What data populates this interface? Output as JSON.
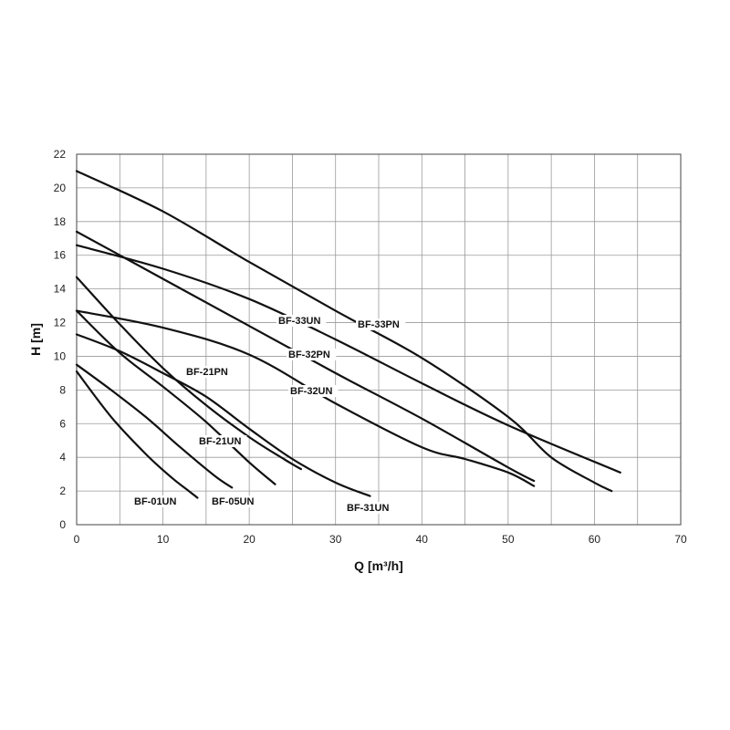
{
  "chart_data": {
    "type": "line",
    "title": "",
    "xlabel": "Q [m³/h]",
    "ylabel": "H [m]",
    "xlim": [
      0,
      70
    ],
    "ylim": [
      0,
      22
    ],
    "xticks": [
      0,
      10,
      20,
      30,
      40,
      50,
      60,
      70
    ],
    "yticks": [
      0,
      2,
      4,
      6,
      8,
      10,
      12,
      14,
      16,
      18,
      20,
      22
    ],
    "grid": true,
    "minor_x_grid_step": 5,
    "series": [
      {
        "name": "BF-01UN",
        "x": [
          0,
          4,
          8,
          11,
          13,
          14
        ],
        "y": [
          9.1,
          6.4,
          4.2,
          2.8,
          2.0,
          1.6
        ]
      },
      {
        "name": "BF-05UN",
        "x": [
          0,
          4,
          8,
          12,
          16,
          18
        ],
        "y": [
          9.5,
          8.0,
          6.4,
          4.6,
          2.9,
          2.2
        ]
      },
      {
        "name": "BF-21UN",
        "x": [
          0,
          5,
          10,
          15,
          20,
          23
        ],
        "y": [
          12.7,
          10.2,
          8.2,
          6.1,
          3.7,
          2.4
        ]
      },
      {
        "name": "BF-21PN",
        "x": [
          0,
          5,
          10,
          15,
          20,
          24,
          26
        ],
        "y": [
          14.7,
          11.9,
          9.3,
          7.1,
          5.2,
          3.9,
          3.3
        ]
      },
      {
        "name": "BF-31UN",
        "x": [
          0,
          5,
          10,
          15,
          20,
          25,
          30,
          34
        ],
        "y": [
          11.3,
          10.3,
          9.0,
          7.6,
          5.7,
          3.9,
          2.5,
          1.7
        ]
      },
      {
        "name": "BF-32UN",
        "x": [
          0,
          10,
          20,
          30,
          40,
          45,
          50,
          53
        ],
        "y": [
          12.7,
          11.7,
          10.1,
          7.2,
          4.6,
          3.9,
          3.1,
          2.3
        ]
      },
      {
        "name": "BF-32PN",
        "x": [
          0,
          10,
          20,
          30,
          40,
          50,
          53
        ],
        "y": [
          17.4,
          14.6,
          11.8,
          9.0,
          6.3,
          3.4,
          2.6
        ]
      },
      {
        "name": "BF-33UN",
        "x": [
          0,
          10,
          20,
          30,
          40,
          50,
          63
        ],
        "y": [
          16.6,
          15.2,
          13.4,
          11.0,
          8.4,
          5.9,
          3.1
        ]
      },
      {
        "name": "BF-33PN",
        "x": [
          0,
          10,
          20,
          30,
          40,
          50,
          55,
          60,
          62
        ],
        "y": [
          21.0,
          18.6,
          15.6,
          12.7,
          9.9,
          6.4,
          4.0,
          2.5,
          2.0
        ]
      }
    ]
  }
}
